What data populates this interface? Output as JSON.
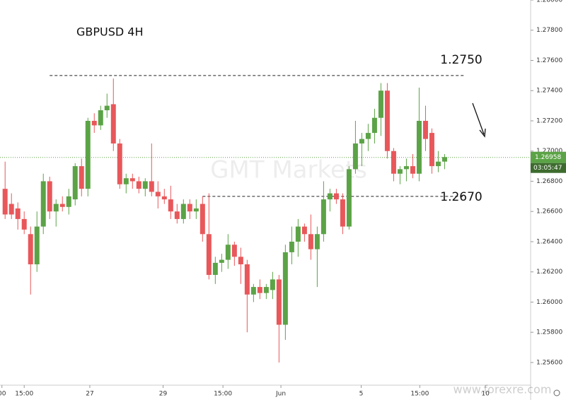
{
  "chart_data": {
    "type": "candlestick",
    "title": "GBPUSD 4H",
    "watermark": "GMT Markets",
    "source": "www.forexre.com",
    "up_color": "#5ba346",
    "down_color": "#e8575a",
    "open": [
      1.2675,
      1.2665,
      1.2662,
      1.2655,
      1.2645,
      1.2625,
      1.265,
      1.268,
      1.266,
      1.2665,
      1.2663,
      1.2668,
      1.269,
      1.2675,
      1.272,
      1.2717,
      1.2727,
      1.2731,
      1.2705,
      1.2678,
      1.2682,
      1.268,
      1.2675,
      1.268,
      1.2673,
      1.267,
      1.2668,
      1.266,
      1.2655,
      1.2665,
      1.266,
      1.2665,
      1.2645,
      1.2618,
      1.2626,
      1.2628,
      1.2638,
      1.263,
      1.2625,
      1.2605,
      1.261,
      1.2606,
      1.2608,
      1.2615,
      1.2585,
      1.2633,
      1.264,
      1.265,
      1.2645,
      1.2635,
      1.2645,
      1.2668,
      1.2672,
      1.2668,
      1.265,
      1.2688,
      1.2705,
      1.2708,
      1.2712,
      1.2722,
      1.274,
      1.27,
      1.2685,
      1.2688,
      1.269,
      1.2685,
      1.272,
      1.2712,
      1.269,
      1.2693
    ],
    "high": [
      1.2693,
      1.2672,
      1.2666,
      1.266,
      1.265,
      1.266,
      1.2685,
      1.2683,
      1.2668,
      1.267,
      1.2675,
      1.2692,
      1.2695,
      1.2722,
      1.2725,
      1.273,
      1.2738,
      1.2748,
      1.2708,
      1.2685,
      1.2685,
      1.2683,
      1.2682,
      1.2705,
      1.268,
      1.2675,
      1.2677,
      1.2665,
      1.2668,
      1.2668,
      1.2668,
      1.267,
      1.2672,
      1.263,
      1.2632,
      1.2645,
      1.264,
      1.2636,
      1.2628,
      1.2612,
      1.2615,
      1.2612,
      1.262,
      1.2618,
      1.2638,
      1.265,
      1.2655,
      1.2652,
      1.2658,
      1.265,
      1.268,
      1.2675,
      1.2675,
      1.2672,
      1.269,
      1.272,
      1.2712,
      1.2718,
      1.2728,
      1.2745,
      1.2745,
      1.2702,
      1.269,
      1.2695,
      1.2698,
      1.2742,
      1.273,
      1.2715,
      1.27,
      1.2698
    ],
    "low": [
      1.2655,
      1.2655,
      1.2648,
      1.2645,
      1.2605,
      1.262,
      1.2645,
      1.2655,
      1.265,
      1.266,
      1.2658,
      1.2664,
      1.267,
      1.267,
      1.2712,
      1.2714,
      1.2722,
      1.27,
      1.2675,
      1.2672,
      1.2675,
      1.2672,
      1.267,
      1.267,
      1.2662,
      1.2665,
      1.2655,
      1.2652,
      1.2652,
      1.2655,
      1.2655,
      1.264,
      1.2615,
      1.2612,
      1.262,
      1.2622,
      1.2624,
      1.2612,
      1.258,
      1.26,
      1.2602,
      1.2602,
      1.2602,
      1.256,
      1.2575,
      1.2625,
      1.263,
      1.264,
      1.2628,
      1.261,
      1.264,
      1.266,
      1.2665,
      1.2645,
      1.2648,
      1.2685,
      1.269,
      1.27,
      1.2705,
      1.271,
      1.2695,
      1.268,
      1.2678,
      1.268,
      1.2682,
      1.268,
      1.27,
      1.2685,
      1.2686,
      1.2688
    ],
    "close": [
      1.2658,
      1.2658,
      1.2655,
      1.2648,
      1.2625,
      1.265,
      1.268,
      1.266,
      1.2665,
      1.2663,
      1.267,
      1.269,
      1.2675,
      1.272,
      1.2717,
      1.2727,
      1.273,
      1.2705,
      1.2678,
      1.2682,
      1.268,
      1.2675,
      1.268,
      1.2673,
      1.267,
      1.2668,
      1.266,
      1.2655,
      1.2665,
      1.266,
      1.2662,
      1.2645,
      1.2618,
      1.2626,
      1.2628,
      1.2638,
      1.263,
      1.2625,
      1.2605,
      1.261,
      1.2606,
      1.261,
      1.2615,
      1.2585,
      1.2633,
      1.264,
      1.265,
      1.2645,
      1.2635,
      1.2645,
      1.2668,
      1.2672,
      1.2668,
      1.265,
      1.2688,
      1.2705,
      1.2708,
      1.2712,
      1.2722,
      1.274,
      1.27,
      1.2685,
      1.2688,
      1.269,
      1.2685,
      1.272,
      1.2708,
      1.269,
      1.2693,
      1.2696
    ],
    "xlim": [
      -0.8,
      82.5
    ],
    "xticks": [
      {
        "value": -0.5,
        "label": "00"
      },
      {
        "value": 3,
        "label": "15:00"
      },
      {
        "value": 13.3,
        "label": "27"
      },
      {
        "value": 24.8,
        "label": "29"
      },
      {
        "value": 34.2,
        "label": "15:00"
      },
      {
        "value": 43.3,
        "label": "Jun"
      },
      {
        "value": 55.9,
        "label": "5"
      },
      {
        "value": 65.1,
        "label": "15:00"
      },
      {
        "value": 75.4,
        "label": "10"
      }
    ],
    "ylim": [
      1.2545,
      1.28
    ],
    "yticks": [
      {
        "value": 1.256,
        "label": "1.25600"
      },
      {
        "value": 1.258,
        "label": "1.25800"
      },
      {
        "value": 1.26,
        "label": "1.26000"
      },
      {
        "value": 1.262,
        "label": "1.26200"
      },
      {
        "value": 1.264,
        "label": "1.26400"
      },
      {
        "value": 1.266,
        "label": "1.26600"
      },
      {
        "value": 1.268,
        "label": "1.26800"
      },
      {
        "value": 1.27,
        "label": "1.27000"
      },
      {
        "value": 1.272,
        "label": "1.27200"
      },
      {
        "value": 1.274,
        "label": "1.27400"
      },
      {
        "value": 1.276,
        "label": "1.27600"
      },
      {
        "value": 1.278,
        "label": "1.27800"
      },
      {
        "value": 1.28,
        "label": "1.28000"
      }
    ],
    "levels": [
      {
        "value": 1.275,
        "label": "1.2750",
        "from": 7.0
      },
      {
        "value": 1.267,
        "label": "1.2670",
        "from": 31.0
      }
    ],
    "last_price": {
      "value": 1.26958,
      "label": "1.26958",
      "countdown": "03:05:47"
    }
  }
}
